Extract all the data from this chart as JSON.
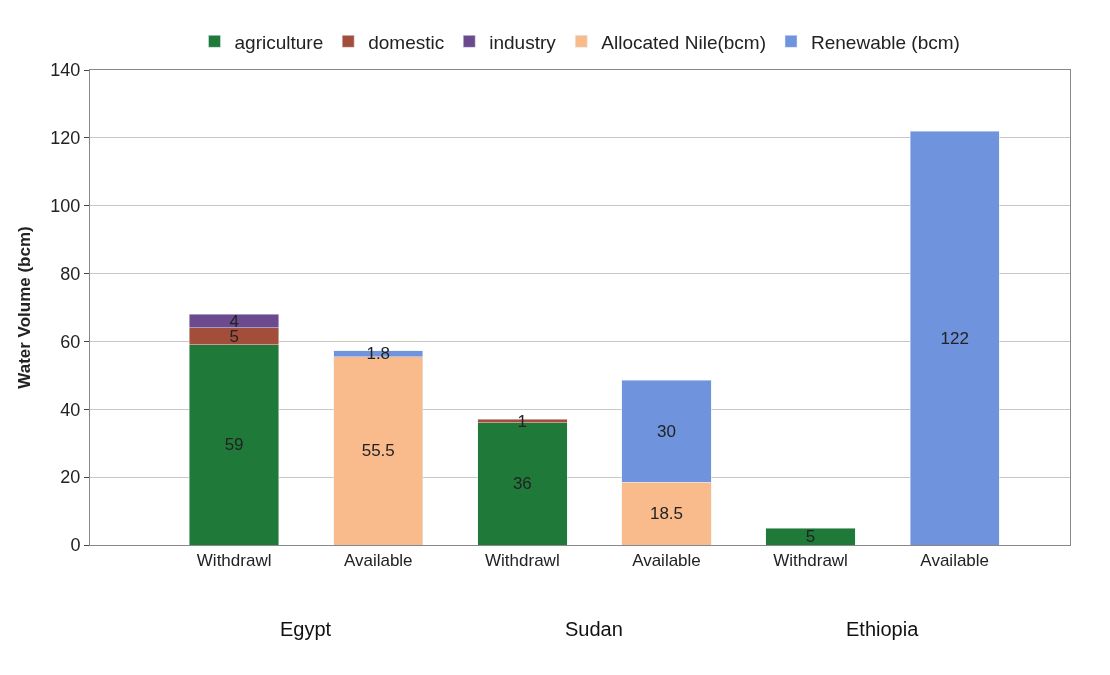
{
  "chart_data": {
    "type": "bar",
    "stacked": true,
    "ylabel": "Water Volume (bcm)",
    "categories": [
      "Withdrawl",
      "Available",
      "Withdrawl",
      "Available",
      "Withdrawl",
      "Available"
    ],
    "series": [
      {
        "name": "agriculture",
        "color": "#1f7a3a",
        "values": [
          59,
          null,
          36,
          null,
          5,
          null
        ]
      },
      {
        "name": "domestic",
        "color": "#a34e3a",
        "values": [
          5,
          null,
          1,
          null,
          null,
          null
        ]
      },
      {
        "name": "industry",
        "color": "#6b4a8e",
        "values": [
          4,
          null,
          null,
          null,
          null,
          null
        ]
      },
      {
        "name": "Allocated Nile(bcm)",
        "color": "#f9bb8c",
        "values": [
          null,
          55.5,
          null,
          18.5,
          null,
          null
        ]
      },
      {
        "name": "Renewable (bcm)",
        "color": "#6f93dc",
        "values": [
          null,
          1.8,
          null,
          30,
          null,
          122
        ]
      }
    ],
    "annotations": [
      "Egypt",
      "Sudan",
      "Ethiopia"
    ],
    "ylim": [
      0,
      140
    ],
    "yticks": [
      0,
      20,
      40,
      60,
      80,
      100,
      120,
      140
    ],
    "grid": "y",
    "legend": "top",
    "data_labels": true
  }
}
